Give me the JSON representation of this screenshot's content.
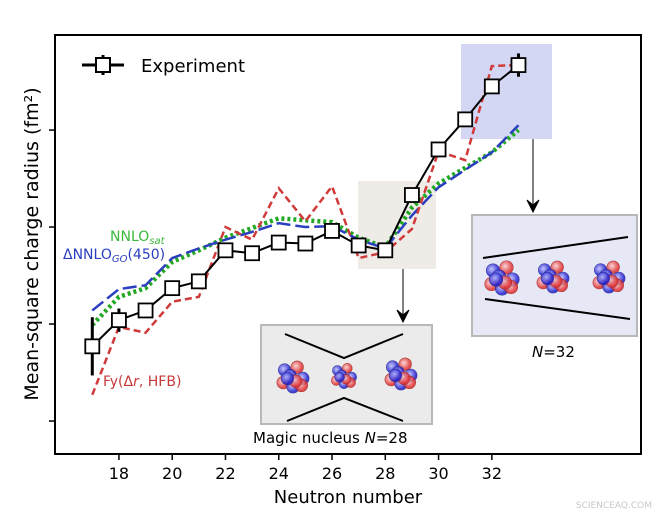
{
  "chart_data": {
    "type": "line",
    "title": "",
    "xlabel": "Neutron number",
    "ylabel": "Mean-square charge radius (fm²)",
    "xlim": [
      15.6,
      37.6
    ],
    "ylim": [
      -0.34,
      3.98
    ],
    "xticks": [
      18,
      20,
      22,
      24,
      26,
      28,
      30,
      32
    ],
    "yticks": [
      0,
      1,
      2,
      3
    ],
    "grid": false,
    "legend": {
      "position": "top-left",
      "entry": "Experiment"
    },
    "x": [
      17,
      18,
      19,
      20,
      21,
      22,
      23,
      24,
      25,
      26,
      27,
      28,
      29,
      30,
      31,
      32,
      33
    ],
    "series": [
      {
        "name": "Experiment",
        "color": "#000000",
        "style": "solid-square-markers",
        "values": [
          0.77,
          1.04,
          1.14,
          1.37,
          1.44,
          1.76,
          1.73,
          1.84,
          1.83,
          1.96,
          1.81,
          1.76,
          2.33,
          2.8,
          3.11,
          3.45,
          3.67
        ]
      },
      {
        "name": "Fy(Δr, HFB)",
        "color": "#d03a3a",
        "style": "dashed",
        "values": [
          0.27,
          0.97,
          0.91,
          1.23,
          1.28,
          2.0,
          1.87,
          2.4,
          2.06,
          2.42,
          1.68,
          1.74,
          1.98,
          2.78,
          2.69,
          3.66,
          3.67
        ]
      },
      {
        "name": "ΔNNLO_GO(450)",
        "color": "#2a3fc0",
        "style": "long-dashed",
        "values": [
          1.14,
          1.36,
          1.4,
          1.68,
          1.78,
          1.87,
          1.95,
          2.04,
          2.0,
          2.01,
          1.87,
          1.78,
          2.12,
          2.41,
          2.59,
          2.77,
          3.05
        ]
      },
      {
        "name": "NNLO_sat",
        "color": "#22a822",
        "style": "dotted",
        "values": [
          0.99,
          1.28,
          1.37,
          1.64,
          1.76,
          1.89,
          1.99,
          2.09,
          2.07,
          2.05,
          1.89,
          1.79,
          2.2,
          2.45,
          2.61,
          2.77,
          3.0
        ]
      }
    ],
    "series_labels": {
      "nnlo_sat": {
        "main": "NNLO",
        "sub": "sat"
      },
      "dnnlo_go": {
        "main": "ΔNNLO",
        "sub": "GO",
        "tail": "(450)"
      },
      "fy": {
        "pre": "Fy(",
        "delta": "Δ",
        "r": "r",
        "tail": ", HFB)"
      }
    },
    "annotations": {
      "magic": {
        "text": "Magic nucleus ",
        "n": "N",
        "value": "=28"
      },
      "n32": {
        "n": "N",
        "value": "=32"
      }
    }
  },
  "watermark": "SCIENCEAQ.COM"
}
